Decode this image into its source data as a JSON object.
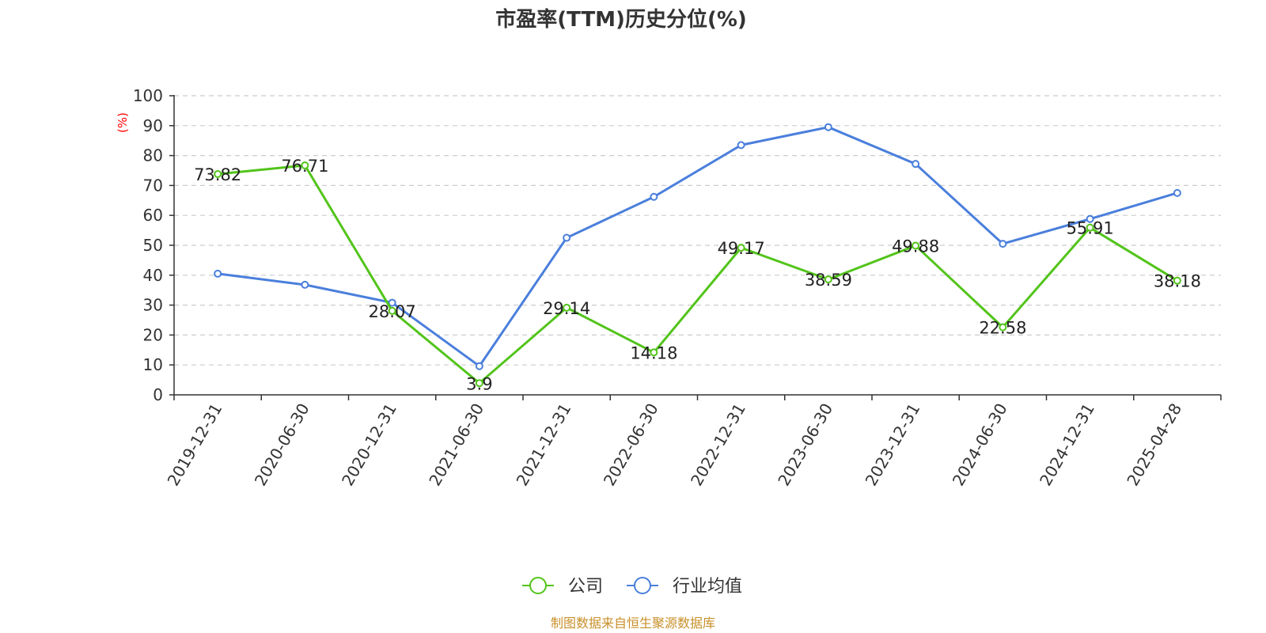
{
  "chart_data": {
    "type": "line",
    "title": "市盈率(TTM)历史分位(%)",
    "ylabel": "(%)",
    "ylim": [
      0,
      100
    ],
    "yticks": [
      "0",
      "10",
      "20",
      "30",
      "40",
      "50",
      "60",
      "70",
      "80",
      "90",
      "100"
    ],
    "categories": [
      "2019-12-31",
      "2020-06-30",
      "2020-12-31",
      "2021-06-30",
      "2021-12-31",
      "2022-06-30",
      "2022-12-31",
      "2023-06-30",
      "2023-12-31",
      "2024-06-30",
      "2024-12-31",
      "2025-04-28"
    ],
    "series": [
      {
        "name": "公司",
        "color": "#52c41a",
        "values": [
          73.82,
          76.71,
          28.07,
          3.9,
          29.14,
          14.18,
          49.17,
          38.59,
          49.88,
          22.58,
          55.91,
          38.18
        ],
        "labels": [
          "73.82",
          "76.71",
          "28.07",
          "3.9",
          "29.14",
          "14.18",
          "49.17",
          "38.59",
          "49.88",
          "22.58",
          "55.91",
          "38.18"
        ]
      },
      {
        "name": "行业均值",
        "color": "#4a7fdc",
        "values": [
          40.5,
          36.8,
          30.8,
          9.6,
          52.5,
          66.2,
          83.5,
          89.5,
          77.2,
          50.5,
          58.8,
          67.5
        ]
      }
    ],
    "grid": true,
    "legend": "bottom-center"
  },
  "source": "制图数据来自恒生聚源数据库",
  "colors": {
    "unit_label": "#ff0000",
    "source_text": "#c8902a",
    "grid": "#cccccc",
    "axis": "#333333"
  }
}
